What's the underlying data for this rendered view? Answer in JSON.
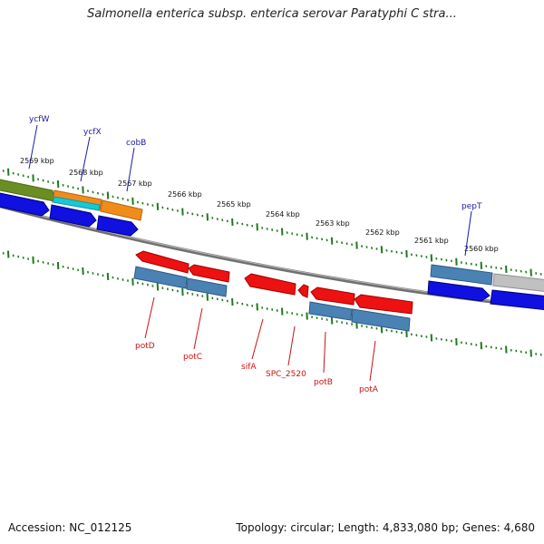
{
  "header": {
    "title": "Salmonella enterica subsp. enterica serovar Paratyphi C stra..."
  },
  "footer": {
    "accession": "Accession: NC_012125",
    "summary": "Topology: circular; Length: 4,833,080 bp; Genes: 4,680"
  },
  "ruler": {
    "labels": [
      "2569 kbp",
      "2568 kbp",
      "2567 kbp",
      "2566 kbp",
      "2565 kbp",
      "2564 kbp",
      "2563 kbp",
      "2562 kbp",
      "2561 kbp",
      "2560 kbp"
    ]
  },
  "genes_top": [
    "ycfW",
    "ycfX",
    "cobB",
    "pepT"
  ],
  "genes_bottom": [
    "potD",
    "potC",
    "sifA",
    "SPC_2520",
    "potB",
    "potA"
  ],
  "colors": {
    "backbone": "#808080",
    "tick": "#1e7a1e",
    "gene_top_label": "#1a1aa8",
    "gene_bottom_label": "#cc1111",
    "cds_blue": "#1010e0",
    "gene_steel": "#4a82b4",
    "gene_red": "#ee1111",
    "gene_olive": "#6b8e23",
    "gene_orange": "#f08c1a",
    "gene_cyan": "#18c8d8",
    "gene_grey": "#c0c0c0"
  }
}
